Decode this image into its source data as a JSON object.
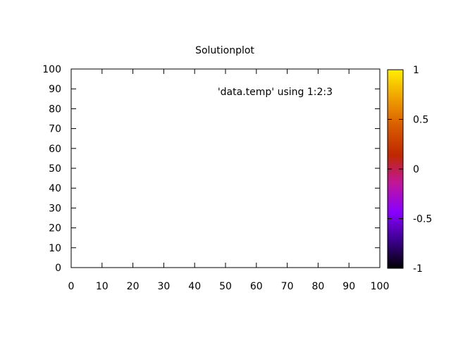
{
  "chart_data": {
    "type": "heatmap",
    "title": "Solutionplot",
    "xlabel": "",
    "ylabel": "",
    "xlim": [
      0,
      100
    ],
    "ylim": [
      0,
      100
    ],
    "x_ticks": [
      "0",
      "10",
      "20",
      "30",
      "40",
      "50",
      "60",
      "70",
      "80",
      "90",
      "100"
    ],
    "y_ticks": [
      "0",
      "10",
      "20",
      "30",
      "40",
      "50",
      "60",
      "70",
      "80",
      "90",
      "100"
    ],
    "x_tick_values": [
      0,
      10,
      20,
      30,
      40,
      50,
      60,
      70,
      80,
      90,
      100
    ],
    "y_tick_values": [
      0,
      10,
      20,
      30,
      40,
      50,
      60,
      70,
      80,
      90,
      100
    ],
    "legend": [
      {
        "label": "'data.temp' using 1:2:3",
        "position": "top-right"
      }
    ],
    "colorbar": {
      "range": [
        -1,
        1
      ],
      "ticks": [
        "1",
        "0.5",
        "0",
        "-0.5",
        "-1"
      ],
      "tick_values": [
        1,
        0.5,
        0,
        -0.5,
        -1
      ],
      "palette": [
        "#000000",
        "#3d0090",
        "#8a00ff",
        "#c0169b",
        "#c02800",
        "#d85a00",
        "#f0a000",
        "#ffee00"
      ]
    },
    "values": [],
    "grid": false
  }
}
